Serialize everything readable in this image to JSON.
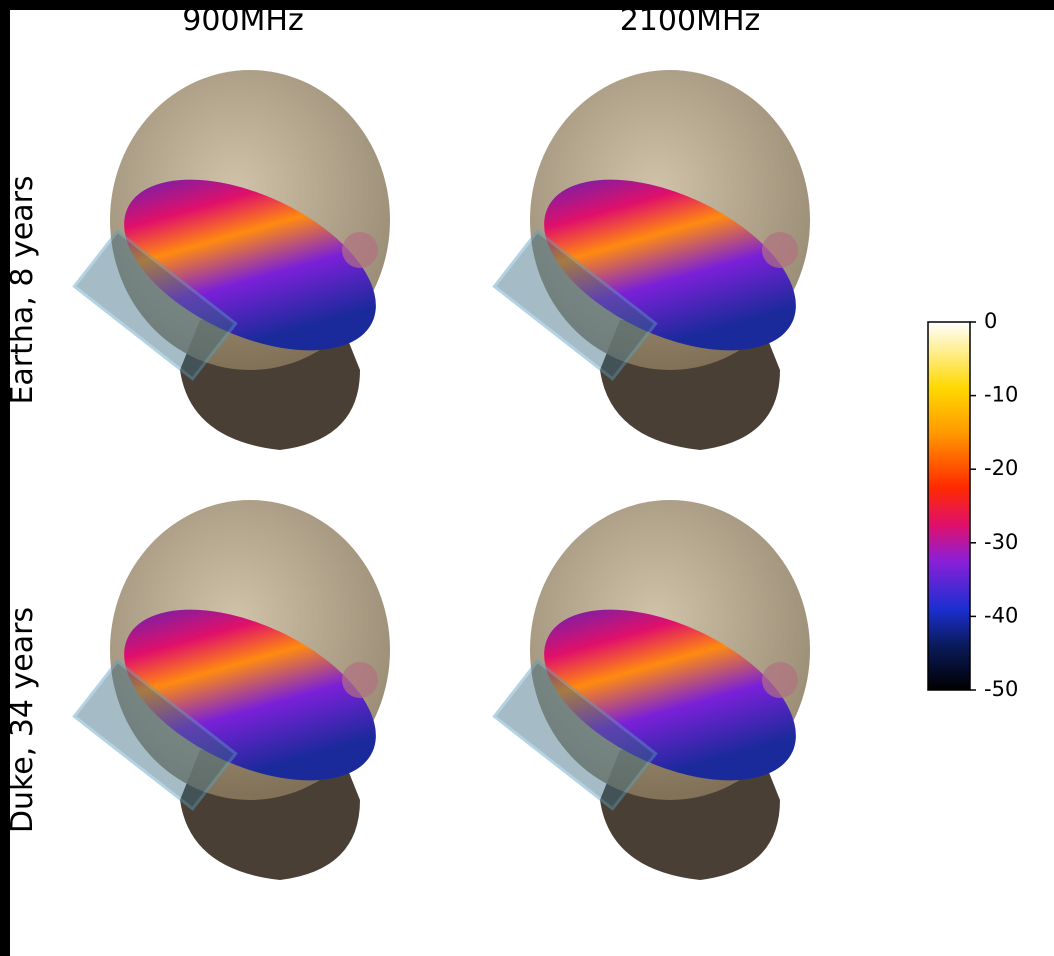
{
  "columns": [
    "900MHz",
    "2100MHz"
  ],
  "rows": [
    "Eartha, 8 years",
    "Duke, 34 years"
  ],
  "colorbar": {
    "lim": [
      -50,
      0
    ],
    "ticks": [
      0,
      -10,
      -20,
      -30,
      -40,
      -50
    ]
  }
}
